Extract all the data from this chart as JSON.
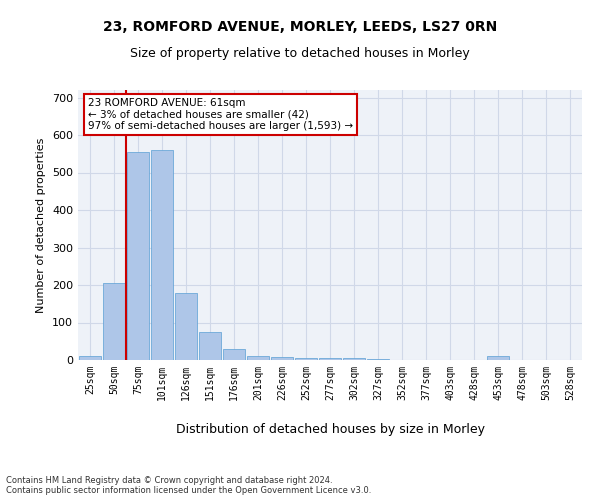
{
  "title": "23, ROMFORD AVENUE, MORLEY, LEEDS, LS27 0RN",
  "subtitle": "Size of property relative to detached houses in Morley",
  "xlabel": "Distribution of detached houses by size in Morley",
  "ylabel": "Number of detached properties",
  "bar_labels": [
    "25sqm",
    "50sqm",
    "75sqm",
    "101sqm",
    "126sqm",
    "151sqm",
    "176sqm",
    "201sqm",
    "226sqm",
    "252sqm",
    "277sqm",
    "302sqm",
    "327sqm",
    "352sqm",
    "377sqm",
    "403sqm",
    "428sqm",
    "453sqm",
    "478sqm",
    "503sqm",
    "528sqm"
  ],
  "bar_values": [
    10,
    205,
    555,
    560,
    180,
    75,
    30,
    12,
    7,
    5,
    5,
    5,
    3,
    1,
    1,
    1,
    0,
    10,
    1,
    1,
    0
  ],
  "bar_color": "#aec6e8",
  "bar_edge_color": "#5a9fd4",
  "vline_color": "#cc0000",
  "annotation_text": "23 ROMFORD AVENUE: 61sqm\n← 3% of detached houses are smaller (42)\n97% of semi-detached houses are larger (1,593) →",
  "annotation_box_color": "#ffffff",
  "annotation_box_edge": "#cc0000",
  "ylim": [
    0,
    720
  ],
  "yticks": [
    0,
    100,
    200,
    300,
    400,
    500,
    600,
    700
  ],
  "grid_color": "#d0d8e8",
  "background_color": "#eef2f8",
  "footer": "Contains HM Land Registry data © Crown copyright and database right 2024.\nContains public sector information licensed under the Open Government Licence v3.0."
}
